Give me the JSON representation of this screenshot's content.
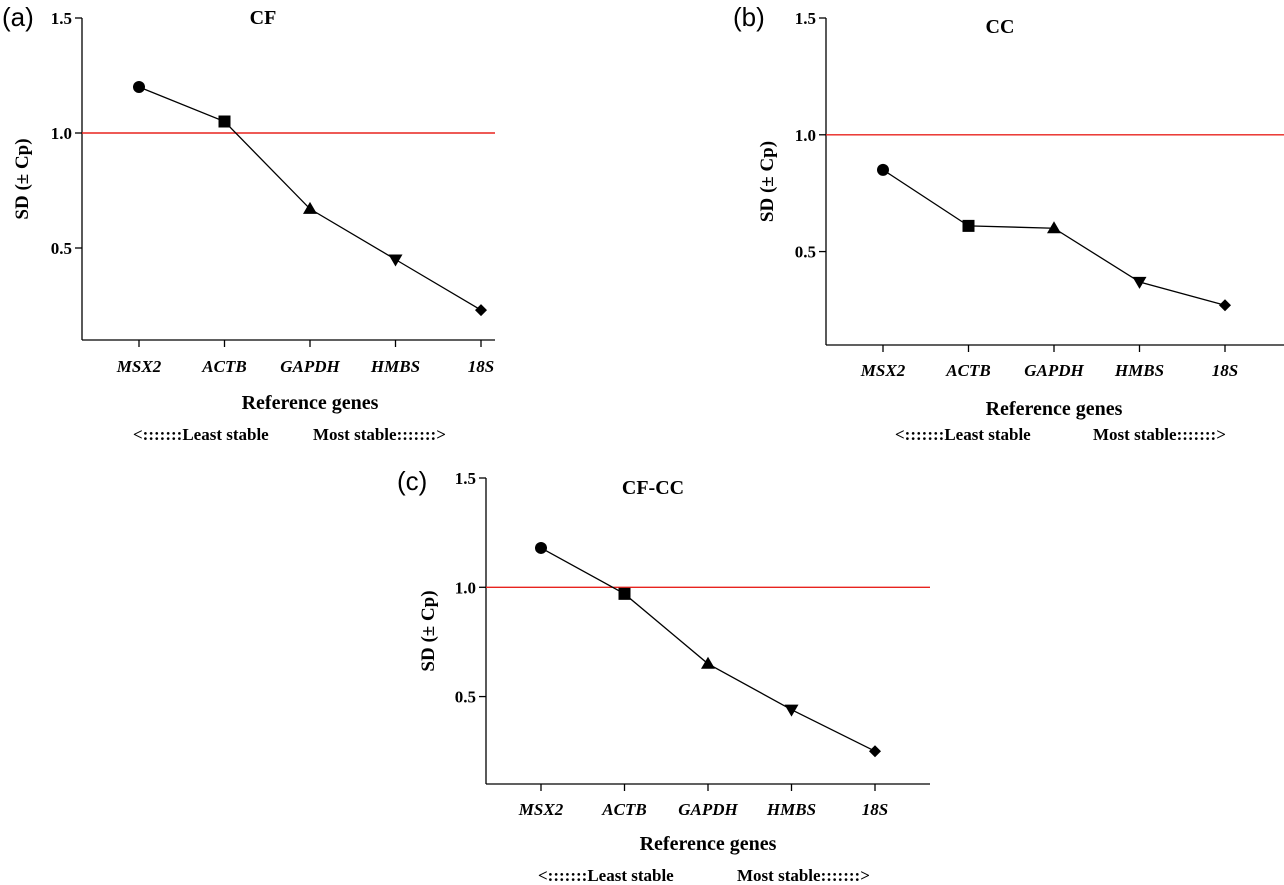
{
  "figure": {
    "stability_left": "<:::::::Least stable",
    "stability_right": "Most stable:::::::>"
  },
  "chart_data": [
    {
      "panel": "(a)",
      "type": "line",
      "title": "CF",
      "xlabel": "Reference genes",
      "ylabel": "SD (± Cp)",
      "categories": [
        "MSX2",
        "ACTB",
        "GAPDH",
        "HMBS",
        "18S"
      ],
      "values": [
        1.2,
        1.05,
        0.67,
        0.45,
        0.23
      ],
      "markers": [
        "circle",
        "square",
        "triangle-up",
        "triangle-down",
        "diamond"
      ],
      "ylim": [
        0.1,
        1.5
      ],
      "yticks": [
        0.5,
        1.0,
        1.5
      ],
      "ytick_labels": [
        "0.5",
        "1.0",
        "1.5"
      ],
      "reference_line": 1.0,
      "reference_color": "#e8231e",
      "grid": false
    },
    {
      "panel": "(b)",
      "type": "line",
      "title": "CC",
      "xlabel": "Reference genes",
      "ylabel": "SD (± Cp)",
      "categories": [
        "MSX2",
        "ACTB",
        "GAPDH",
        "HMBS",
        "18S"
      ],
      "values": [
        0.85,
        0.61,
        0.6,
        0.37,
        0.27
      ],
      "markers": [
        "circle",
        "square",
        "triangle-up",
        "triangle-down",
        "diamond"
      ],
      "ylim": [
        0.1,
        1.5
      ],
      "yticks": [
        0.5,
        1.0,
        1.5
      ],
      "ytick_labels": [
        "0.5",
        "1.0",
        "1.5"
      ],
      "reference_line": 1.0,
      "reference_color": "#e8231e",
      "grid": false
    },
    {
      "panel": "(c)",
      "type": "line",
      "title": "CF-CC",
      "xlabel": "Reference genes",
      "ylabel": "SD (± Cp)",
      "categories": [
        "MSX2",
        "ACTB",
        "GAPDH",
        "HMBS",
        "18S"
      ],
      "values": [
        1.18,
        0.97,
        0.65,
        0.44,
        0.25
      ],
      "markers": [
        "circle",
        "square",
        "triangle-up",
        "triangle-down",
        "diamond"
      ],
      "ylim": [
        0.1,
        1.5
      ],
      "yticks": [
        0.5,
        1.0,
        1.5
      ],
      "ytick_labels": [
        "0.5",
        "1.0",
        "1.5"
      ],
      "reference_line": 1.0,
      "reference_color": "#e8231e",
      "grid": false
    }
  ]
}
